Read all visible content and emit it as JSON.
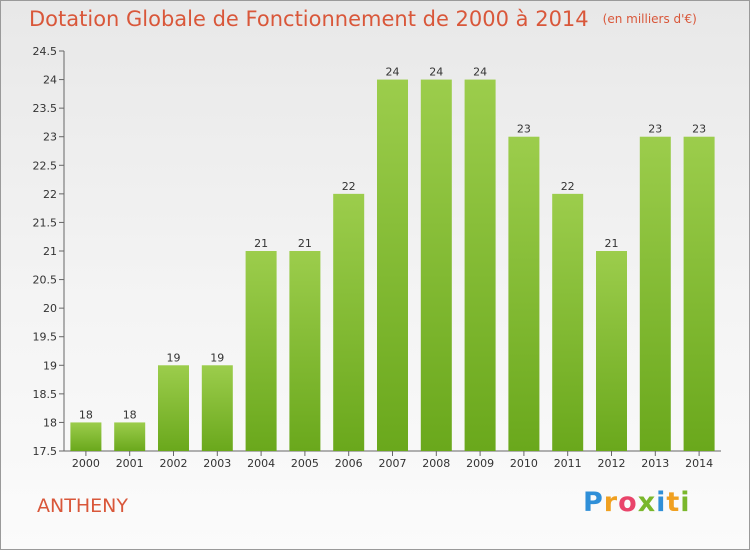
{
  "header": {
    "title": "Dotation Globale de Fonctionnement de 2000 à 2014",
    "subtitle": "(en milliers d'€)"
  },
  "footer": {
    "commune": "ANTHENY",
    "logo": "Proxiti"
  },
  "colors": {
    "bar": "#7ab72b",
    "bar_light": "#9ccd4c",
    "text_accent": "#d9573a",
    "axis_text": "#333333"
  },
  "chart_data": {
    "type": "bar",
    "title": "Dotation Globale de Fonctionnement de 2000 à 2014",
    "subtitle": "(en milliers d'€)",
    "xlabel": "",
    "ylabel": "",
    "categories": [
      "2000",
      "2001",
      "2002",
      "2003",
      "2004",
      "2005",
      "2006",
      "2007",
      "2008",
      "2009",
      "2010",
      "2011",
      "2012",
      "2013",
      "2014"
    ],
    "values": [
      18,
      18,
      19,
      19,
      21,
      21,
      22,
      24,
      24,
      24,
      23,
      22,
      21,
      23,
      23
    ],
    "data_labels": [
      "18",
      "18",
      "19",
      "19",
      "21",
      "21",
      "22",
      "24",
      "24",
      "24",
      "23",
      "22",
      "21",
      "23",
      "23"
    ],
    "ylim": [
      17.5,
      24.5
    ],
    "yticks": [
      "17.5",
      "18",
      "18.5",
      "19",
      "19.5",
      "20",
      "20.5",
      "21",
      "21.5",
      "22",
      "22.5",
      "23",
      "23.5",
      "24",
      "24.5"
    ],
    "grid": false,
    "legend": "none"
  }
}
